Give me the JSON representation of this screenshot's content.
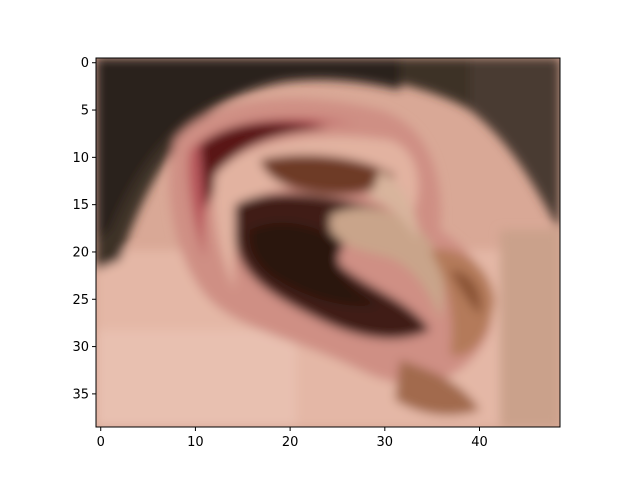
{
  "chart_data": {
    "type": "heatmap",
    "title": "",
    "xlabel": "",
    "ylabel": "",
    "image_width": 49,
    "image_height": 39,
    "xlim": [
      -0.5,
      48.5
    ],
    "ylim": [
      38.5,
      -0.5
    ],
    "x_ticks": [
      0,
      10,
      20,
      30,
      40
    ],
    "y_ticks": [
      0,
      5,
      10,
      15,
      20,
      25,
      30,
      35
    ],
    "grid": false,
    "legend": "none",
    "image_content": "pixelated close-up photo of a human ear (skin tones, dark hair at top)",
    "colors": {
      "hair": "#3d3027",
      "hair_dark": "#2b221c",
      "skin_light": "#e2b3a1",
      "skin_mid": "#c98f78",
      "skin_pink": "#d78a88",
      "helix_red": "#b8575b",
      "concha_dark": "#3f1f14",
      "shadow_brown": "#6e3b26",
      "antihelix_tan": "#c9a48a",
      "canal_dark": "#2a120c"
    }
  }
}
